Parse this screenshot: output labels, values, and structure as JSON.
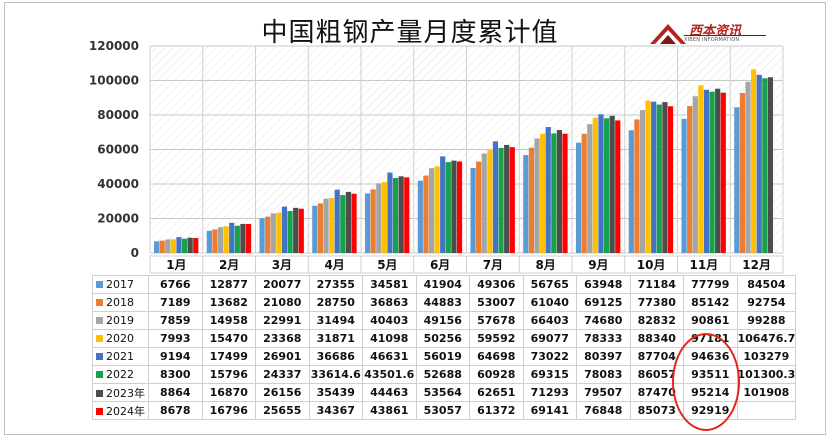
{
  "title": "中国粗钢产量月度累计值",
  "logo": {
    "name": "西本资讯",
    "sub": "XIBEN INFORMATION"
  },
  "chart_data": {
    "type": "bar",
    "title": "中国粗钢产量月度累计值",
    "xlabel": "",
    "ylabel": "",
    "ylim": [
      0,
      120000
    ],
    "yticks": [
      "0",
      "20000",
      "40000",
      "60000",
      "80000",
      "100000",
      "120000"
    ],
    "categories": [
      "1月",
      "2月",
      "3月",
      "4月",
      "5月",
      "6月",
      "7月",
      "8月",
      "9月",
      "10月",
      "11月",
      "12月"
    ],
    "series": [
      {
        "name": "2017",
        "color": "#5b9bd5",
        "values": [
          6766,
          12877,
          20077,
          27355,
          34581,
          41904,
          49306,
          56765,
          63948,
          71184,
          77799,
          84504
        ],
        "display": [
          "6766",
          "12877",
          "20077",
          "27355",
          "34581",
          "41904",
          "49306",
          "56765",
          "63948",
          "71184",
          "77799",
          "84504"
        ]
      },
      {
        "name": "2018",
        "color": "#ed7d31",
        "values": [
          7189,
          13682,
          21080,
          28750,
          36863,
          44883,
          53007,
          61040,
          69125,
          77380,
          85142,
          92754
        ],
        "display": [
          "7189",
          "13682",
          "21080",
          "28750",
          "36863",
          "44883",
          "53007",
          "61040",
          "69125",
          "77380",
          "85142",
          "92754"
        ]
      },
      {
        "name": "2019",
        "color": "#a5a5a5",
        "values": [
          7859,
          14958,
          22991,
          31494,
          40403,
          49156,
          57678,
          66403,
          74680,
          82832,
          90861,
          99288
        ],
        "display": [
          "7859",
          "14958",
          "22991",
          "31494",
          "40403",
          "49156",
          "57678",
          "66403",
          "74680",
          "82832",
          "90861",
          "99288"
        ]
      },
      {
        "name": "2020",
        "color": "#ffc000",
        "values": [
          7993,
          15470,
          23368,
          31871,
          41098,
          50256,
          59592,
          69077,
          78333,
          88340,
          97181,
          106476.7
        ],
        "display": [
          "7993",
          "15470",
          "23368",
          "31871",
          "41098",
          "50256",
          "59592",
          "69077",
          "78333",
          "88340",
          "97181",
          "106476.7"
        ]
      },
      {
        "name": "2021",
        "color": "#4472c4",
        "values": [
          9194,
          17499,
          26901,
          36686,
          46631,
          56019,
          64698,
          73022,
          80397,
          87704,
          94636,
          103279
        ],
        "display": [
          "9194",
          "17499",
          "26901",
          "36686",
          "46631",
          "56019",
          "64698",
          "73022",
          "80397",
          "87704",
          "94636",
          "103279"
        ]
      },
      {
        "name": "2022",
        "color": "#17a14a",
        "values": [
          8300,
          15796,
          24337,
          33614.6,
          43501.6,
          52688,
          60928,
          69315,
          78083,
          86057,
          93511,
          101300.3
        ],
        "display": [
          "8300",
          "15796",
          "24337",
          "33614.6",
          "43501.6",
          "52688",
          "60928",
          "69315",
          "78083",
          "86057",
          "93511",
          "101300.3"
        ]
      },
      {
        "name": "2023年",
        "color": "#4d4d4d",
        "values": [
          8864,
          16870,
          26156,
          35439,
          44463,
          53564,
          62651,
          71293,
          79507,
          87470,
          95214,
          101908
        ],
        "display": [
          "8864",
          "16870",
          "26156",
          "35439",
          "44463",
          "53564",
          "62651",
          "71293",
          "79507",
          "87470",
          "95214",
          "101908"
        ]
      },
      {
        "name": "2024年",
        "color": "#ff0000",
        "values": [
          8678,
          16796,
          25655,
          34367,
          43861,
          53057,
          61372,
          69141,
          76848,
          85073,
          92919,
          null
        ],
        "display": [
          "8678",
          "16796",
          "25655",
          "34367",
          "43861",
          "53057",
          "61372",
          "69141",
          "76848",
          "85073",
          "92919",
          ""
        ]
      }
    ],
    "annotations": [
      {
        "type": "ellipse",
        "target": "11月 (2021–2024)"
      }
    ]
  }
}
